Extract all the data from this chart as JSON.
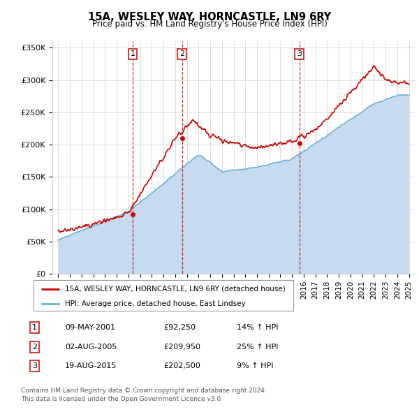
{
  "title": "15A, WESLEY WAY, HORNCASTLE, LN9 6RY",
  "subtitle": "Price paid vs. HM Land Registry's House Price Index (HPI)",
  "y_ticks": [
    0,
    50000,
    100000,
    150000,
    200000,
    250000,
    300000,
    350000
  ],
  "y_tick_labels": [
    "£0",
    "£50K",
    "£100K",
    "£150K",
    "£200K",
    "£250K",
    "£300K",
    "£350K"
  ],
  "legend_line1": "15A, WESLEY WAY, HORNCASTLE, LN9 6RY (detached house)",
  "legend_line2": "HPI: Average price, detached house, East Lindsey",
  "footer1": "Contains HM Land Registry data © Crown copyright and database right 2024.",
  "footer2": "This data is licensed under the Open Government Licence v3.0.",
  "table_rows": [
    {
      "num": "1",
      "date": "09-MAY-2001",
      "price": "£92,250",
      "change": "14% ↑ HPI"
    },
    {
      "num": "2",
      "date": "02-AUG-2005",
      "price": "£209,950",
      "change": "25% ↑ HPI"
    },
    {
      "num": "3",
      "date": "19-AUG-2015",
      "price": "£202,500",
      "change": "9% ↑ HPI"
    }
  ],
  "transaction_years": [
    2001.36,
    2005.58,
    2015.63
  ],
  "transaction_prices": [
    92250,
    209950,
    202500
  ],
  "transaction_labels": [
    "1",
    "2",
    "3"
  ],
  "hpi_line_color": "#6baed6",
  "hpi_fill_color": "#c6dbef",
  "price_color": "#cc0000",
  "dashed_line_color": "#cc0000",
  "bg_color": "#ffffff",
  "grid_color": "#d0d0d0",
  "y_min": 0,
  "y_max": 360000,
  "x_min": 1994.5,
  "x_max": 2025.5
}
